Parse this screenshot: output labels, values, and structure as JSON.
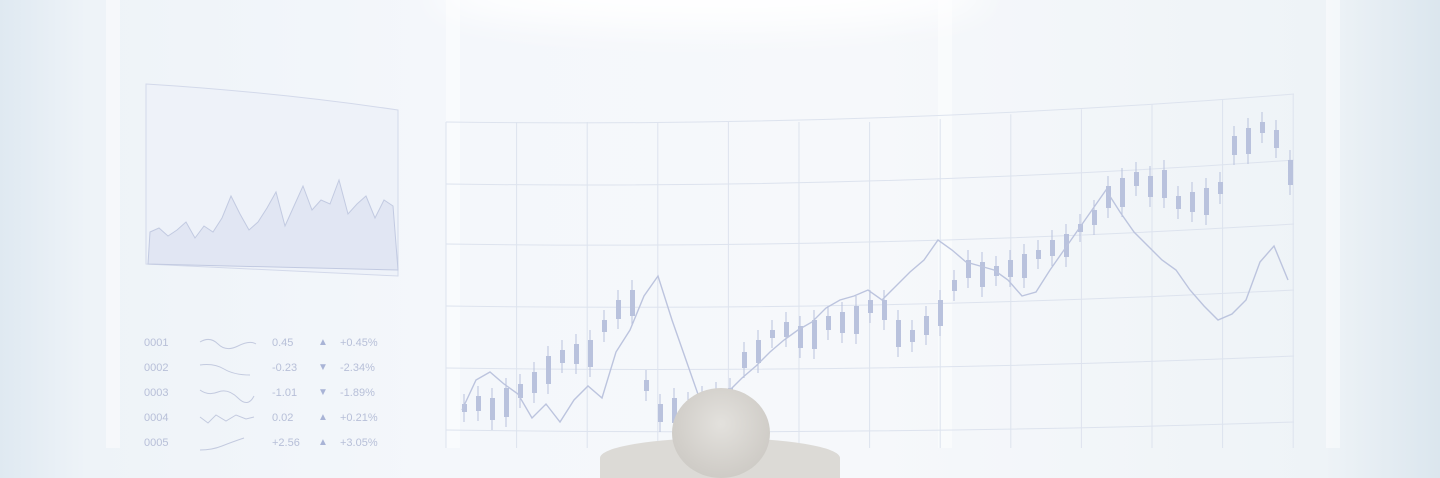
{
  "ticker": {
    "rows": [
      {
        "code": "0001",
        "value": "0.45",
        "direction": "up",
        "change": "+0.45%"
      },
      {
        "code": "0002",
        "value": "-0.23",
        "direction": "down",
        "change": "-2.34%"
      },
      {
        "code": "0003",
        "value": "-1.01",
        "direction": "down",
        "change": "-1.89%"
      },
      {
        "code": "0004",
        "value": "0.02",
        "direction": "up",
        "change": "+0.21%"
      },
      {
        "code": "0005",
        "value": "+2.56",
        "direction": "up",
        "change": "+3.05%"
      }
    ]
  },
  "colors": {
    "chart_ink": "#b9c2dd",
    "grid": "#dde3ee",
    "area_fill": "#e3e8f4"
  },
  "icons": {
    "up": "triangle-up-icon",
    "down": "triangle-down-icon"
  }
}
